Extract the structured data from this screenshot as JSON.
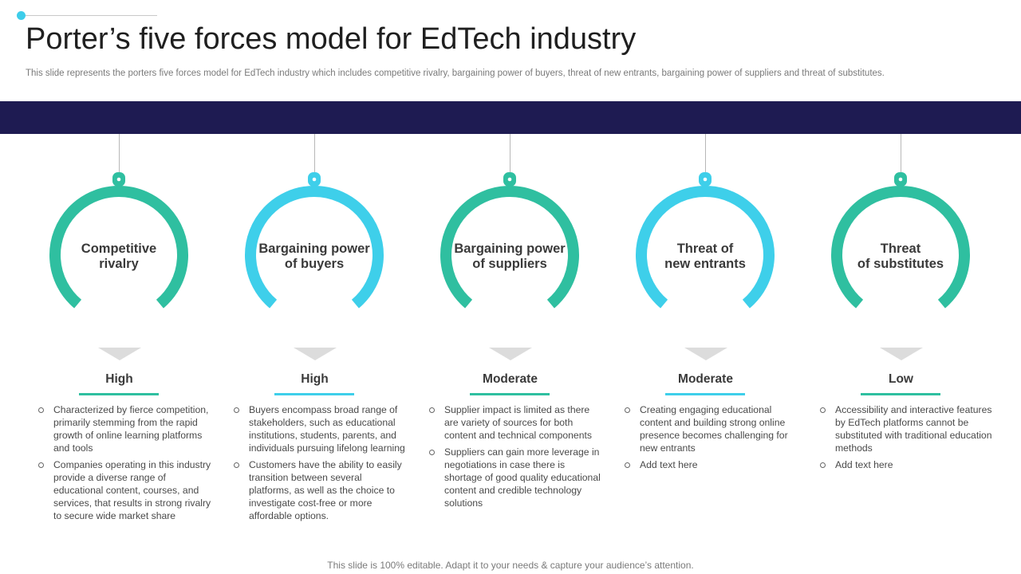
{
  "title": "Porter’s five forces model for EdTech industry",
  "subtitle": "This slide represents the porters five forces model for EdTech industry which includes competitive rivalry,  bargaining power of buyers, threat of new entrants, bargaining power of suppliers and threat of substitutes.",
  "colors": {
    "teal": "#2fbfa0",
    "cyan": "#3ecfea",
    "navy": "#1e1b52"
  },
  "forces": [
    {
      "name_line1": "Competitive",
      "name_line2": "rivalry",
      "level": "High",
      "color": "#2fbfa0",
      "bullets": [
        "Characterized by fierce competition, primarily stemming from the rapid growth of online learning platforms and tools",
        "Companies operating in this industry provide  a diverse  range of educational content, courses, and services, that results in strong rivalry  to secure wide market share"
      ]
    },
    {
      "name_line1": "Bargaining power",
      "name_line2": "of buyers",
      "level": "High",
      "color": "#3ecfea",
      "bullets": [
        "Buyers encompass broad range of stakeholders, such as educational institutions, students, parents, and individuals  pursuing lifelong learning",
        "Customers have the ability to easily transition between  several platforms, as well as the choice to investigate cost-free or more affordable  options."
      ]
    },
    {
      "name_line1": "Bargaining power",
      "name_line2": "of suppliers",
      "level": "Moderate",
      "color": "#2fbfa0",
      "bullets": [
        "Supplier impact is limited as there are variety of sources for both content and technical components",
        "Suppliers can gain more leverage  in negotiations in case there is shortage of good quality educational content and credible technology solutions"
      ]
    },
    {
      "name_line1": "Threat of",
      "name_line2": "new entrants",
      "level": "Moderate",
      "color": "#3ecfea",
      "bullets": [
        "Creating  engaging educational content and building strong online presence becomes challenging for new entrants",
        "Add text here"
      ]
    },
    {
      "name_line1": "Threat",
      "name_line2": "of substitutes",
      "level": "Low",
      "color": "#2fbfa0",
      "bullets": [
        "Accessibility and interactive features by EdTech platforms cannot be substituted with traditional education methods",
        "Add text here"
      ]
    }
  ],
  "footer": "This slide is 100% editable. Adapt it to your needs & capture your audience’s attention."
}
